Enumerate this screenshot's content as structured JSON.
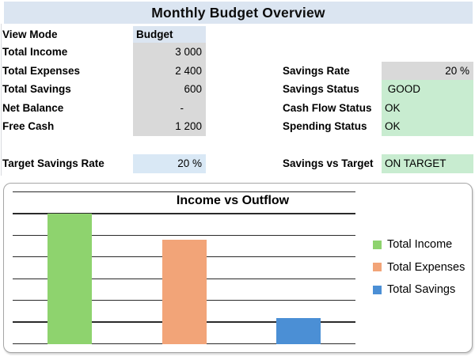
{
  "window": {
    "title": "Monthly Budget Overview"
  },
  "colors": {
    "title_band_bg": "#dbe5f1",
    "selector_cell_bg": "#dbe5f1",
    "input_cell_bg": "#d9e8f5",
    "value_cell_bg": "#d9d9d9",
    "status_ok_bg": "#c8ecd0",
    "bar_income": "#8ed36e",
    "bar_expenses": "#f2a478",
    "bar_savings": "#4b8fd5",
    "chart_border": "#a6a6a6",
    "gridline": "#2a2a2a"
  },
  "left_table": {
    "rows": [
      {
        "label": "View Mode",
        "value": "Budget"
      },
      {
        "label": "Total Income",
        "value": "3 000"
      },
      {
        "label": "Total Expenses",
        "value": "2 400"
      },
      {
        "label": "Total Savings",
        "value": "600"
      },
      {
        "label": "Net Balance",
        "value": "-"
      },
      {
        "label": "Free Cash",
        "value": "1 200"
      }
    ]
  },
  "target_row": {
    "label": "Target Savings Rate",
    "value": "20 %"
  },
  "right_table": {
    "rows": [
      {
        "label": "Savings Rate",
        "value": "20 %"
      },
      {
        "label": "Savings Status",
        "value": " GOOD"
      },
      {
        "label": "Cash Flow Status",
        "value": "OK"
      },
      {
        "label": "Spending Status",
        "value": "OK"
      }
    ]
  },
  "summary_row": {
    "label": "Savings vs Target",
    "value": "ON TARGET"
  },
  "chart_data": {
    "type": "bar",
    "title": "Income vs Outflow",
    "categories": [
      "Total Income",
      "Total Expenses",
      "Total Savings"
    ],
    "values": [
      3000,
      2400,
      600
    ],
    "series_colors": [
      "#8ed36e",
      "#f2a478",
      "#4b8fd5"
    ],
    "ylim": [
      0,
      3500
    ],
    "gridline_step": 500,
    "grid": true,
    "x_tick_labels_visible": false,
    "y_tick_labels_visible": false,
    "legend_position": "right",
    "legend": [
      "Total Income",
      "Total Expenses",
      "Total Savings"
    ]
  }
}
